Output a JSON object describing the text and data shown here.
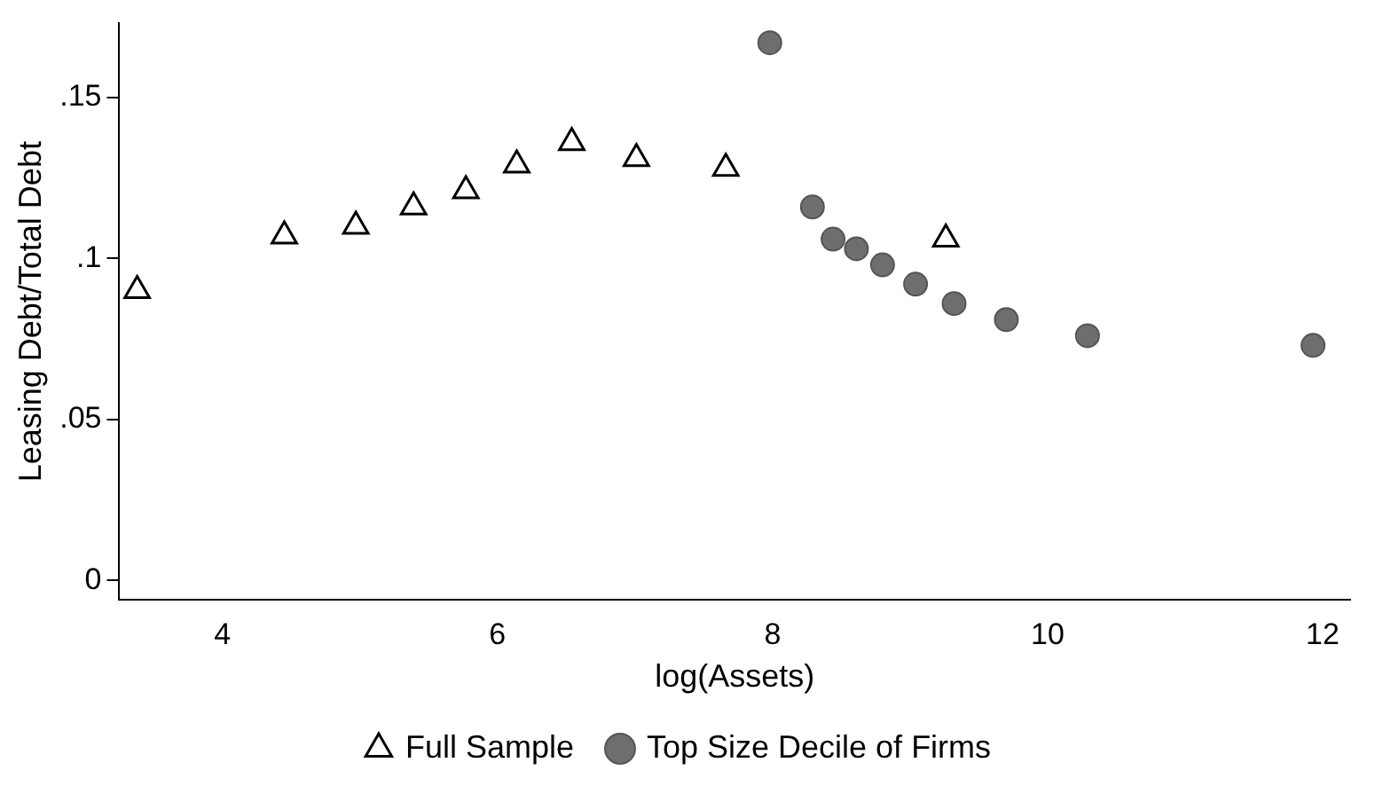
{
  "chart_data": {
    "type": "scatter",
    "xlabel": "log(Assets)",
    "ylabel": "Leasing Debt/Total Debt",
    "xlim": [
      3.25,
      12.2
    ],
    "xticks": [
      4,
      6,
      8,
      10,
      12
    ],
    "ylim": [
      -0.006,
      0.173
    ],
    "yticks": [
      {
        "value": 0,
        "label": "0"
      },
      {
        "value": 0.05,
        "label": ".05"
      },
      {
        "value": 0.1,
        "label": ".1"
      },
      {
        "value": 0.15,
        "label": ".15"
      }
    ],
    "grid": false,
    "legend": "bottom",
    "series": [
      {
        "name": "Full Sample",
        "color": "#000000",
        "marker": "triangle",
        "x": [
          3.38,
          4.45,
          4.97,
          5.39,
          5.77,
          6.14,
          6.54,
          7.01,
          7.66,
          9.26
        ],
        "values": [
          0.09,
          0.107,
          0.11,
          0.116,
          0.121,
          0.129,
          0.136,
          0.131,
          0.128,
          0.106
        ]
      },
      {
        "name": "Top Size Decile of Firms",
        "color": "#6e6e6e",
        "marker": "circle",
        "x": [
          7.98,
          8.29,
          8.44,
          8.61,
          8.8,
          9.04,
          9.32,
          9.7,
          10.29,
          11.93
        ],
        "values": [
          0.167,
          0.116,
          0.106,
          0.103,
          0.098,
          0.092,
          0.086,
          0.081,
          0.076,
          0.073
        ]
      }
    ]
  }
}
